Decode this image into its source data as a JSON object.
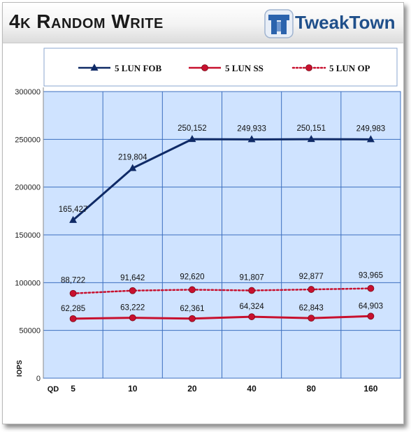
{
  "header": {
    "title": "4k Random Write",
    "logo_text": "TweakTown"
  },
  "colors": {
    "plot_fill": "#cfe3ff",
    "gridline": "#3c6fbf",
    "fob": "#0f2a66",
    "ss": "#c8102e",
    "op": "#c8102e"
  },
  "chart_data": {
    "type": "line",
    "title": "4k Random Write",
    "xlabel": "QD",
    "ylabel": "IOPS",
    "categories": [
      "5",
      "10",
      "20",
      "40",
      "80",
      "160"
    ],
    "ylim": [
      0,
      300000
    ],
    "yticks": [
      "0",
      "50000",
      "100000",
      "150000",
      "200000",
      "250000",
      "300000"
    ],
    "grid": true,
    "legend_position": "top",
    "series": [
      {
        "name": "5 LUN FOB",
        "marker": "triangle",
        "style": "solid",
        "values": [
          165427,
          219804,
          250152,
          249933,
          250151,
          249983
        ],
        "labels": [
          "165,427",
          "219,804",
          "250,152",
          "249,933",
          "250,151",
          "249,983"
        ]
      },
      {
        "name": "5 LUN SS",
        "marker": "circle",
        "style": "solid",
        "values": [
          62285,
          63222,
          62361,
          64324,
          62843,
          64903
        ],
        "labels": [
          "62,285",
          "63,222",
          "62,361",
          "64,324",
          "62,843",
          "64,903"
        ]
      },
      {
        "name": "5 LUN OP",
        "marker": "circle",
        "style": "dotted",
        "values": [
          88722,
          91642,
          92620,
          91807,
          92877,
          93965
        ],
        "labels": [
          "88,722",
          "91,642",
          "92,620",
          "91,807",
          "92,877",
          "93,965"
        ]
      }
    ]
  }
}
